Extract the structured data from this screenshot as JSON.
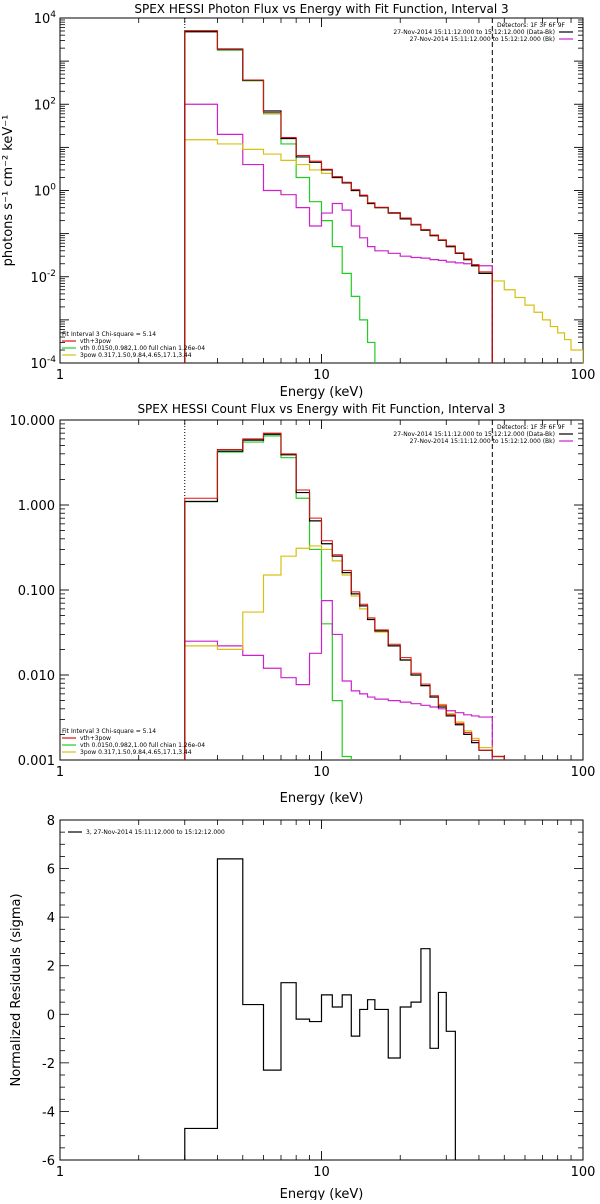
{
  "colors": {
    "black": "#000000",
    "red": "#e01010",
    "green": "#22cc22",
    "magenta": "#cc22cc",
    "yellow": "#d8c010",
    "orange": "#e07010"
  },
  "chart_data": [
    {
      "type": "line",
      "title": "SPEX HESSI Photon Flux vs Energy with Fit Function, Interval 3",
      "xlabel": "Energy (keV)",
      "ylabel": "photons s⁻¹ cm⁻² keV⁻¹",
      "xscale": "log",
      "yscale": "log",
      "xlim": [
        1,
        100
      ],
      "ylim": [
        0.0001,
        10000
      ],
      "xticks": [
        "1",
        "10",
        "100"
      ],
      "yticks": [
        {
          "base": "10",
          "exp": "-4"
        },
        {
          "base": "10",
          "exp": "-2"
        },
        {
          "base": "10",
          "exp": "0"
        },
        {
          "base": "10",
          "exp": "2"
        },
        {
          "base": "10",
          "exp": "4"
        }
      ],
      "vlines": [
        {
          "x": 3.0,
          "style": "dotted",
          "color": "#000000"
        },
        {
          "x": 45.0,
          "style": "dashed",
          "color": "#000000"
        }
      ],
      "legend_top_right": [
        {
          "text": "Detectors: 1F 3F 6F 9F",
          "color": ""
        },
        {
          "text": "27-Nov-2014 15:11:12.000 to 15:12:12.000 (Data-Bk)",
          "color": "#000000"
        },
        {
          "text": "27-Nov-2014 15:11:12.000 to 15:12:12.000 (Bk)",
          "color": "#cc22cc"
        }
      ],
      "legend_bottom_left": [
        {
          "text": "Fit Interval 3   Chi-square = 5.14",
          "color": ""
        },
        {
          "text": "vth+3pow",
          "color": "#e01010"
        },
        {
          "text": "vth 0.0150,0.982,1.00  full chian 1.26e-04",
          "color": "#22cc22"
        },
        {
          "text": "3pow 0.317,1.50,9.84,4.65,17.1,3.44",
          "color": "#d8c010"
        }
      ],
      "edges": [
        3.0,
        4.0,
        5.0,
        6.0,
        7.0,
        8.0,
        9.0,
        10.0,
        11.0,
        12.0,
        13.0,
        14.0,
        15.0,
        16.0,
        18.0,
        20.0,
        22.0,
        24.0,
        26.0,
        28.0,
        30.0,
        32.5,
        35.0,
        37.5,
        40.0,
        45.0,
        50.0,
        55.0,
        60.0,
        65.0,
        70.0,
        75.0,
        80.0,
        85.0,
        90.0,
        100.0
      ],
      "series": [
        {
          "color": "#22cc22",
          "width": 1.2,
          "values": [
            5000,
            1800,
            350,
            60,
            12,
            2.0,
            0.55,
            0.2,
            0.05,
            0.012,
            0.0035,
            0.001,
            0.0003,
            8e-05
          ]
        },
        {
          "color": "#cc22cc",
          "width": 1.2,
          "values": [
            100,
            20,
            4.0,
            1.0,
            0.8,
            0.4,
            0.15,
            0.3,
            0.5,
            0.35,
            0.15,
            0.08,
            0.05,
            0.04,
            0.035,
            0.03,
            0.028,
            0.027,
            0.025,
            0.024,
            0.022,
            0.021,
            0.02,
            0.019,
            0.018
          ]
        },
        {
          "color": "#d8c010",
          "width": 1.2,
          "values": [
            15,
            12,
            9.0,
            7.0,
            5.0,
            4.0,
            3.0,
            2.5,
            2.0,
            1.5,
            1.0,
            0.75,
            0.5,
            0.4,
            0.3,
            0.22,
            0.16,
            0.12,
            0.09,
            0.07,
            0.05,
            0.035,
            0.025,
            0.018,
            0.012,
            0.008,
            0.005,
            0.0033,
            0.0022,
            0.0015,
            0.001,
            0.0007,
            0.0005,
            0.00035,
            0.0002
          ]
        },
        {
          "color": "#000000",
          "width": 1.2,
          "values": [
            4800,
            1900,
            360,
            70,
            16,
            6.0,
            4.5,
            3.0,
            2.0,
            1.5,
            1.0,
            0.75,
            0.5,
            0.4,
            0.3,
            0.22,
            0.16,
            0.12,
            0.09,
            0.07,
            0.05,
            0.035,
            0.025,
            0.018,
            0.012
          ]
        },
        {
          "color": "#e01010",
          "width": 1.0,
          "values": [
            5100,
            1850,
            365,
            65,
            17,
            6.5,
            4.8,
            3.1,
            2.1,
            1.55,
            1.05,
            0.78,
            0.52,
            0.41,
            0.31,
            0.23,
            0.165,
            0.125,
            0.093,
            0.072,
            0.052,
            0.036,
            0.026,
            0.019,
            0.013
          ]
        }
      ]
    },
    {
      "type": "line",
      "title": "SPEX HESSI Count Flux vs Energy with Fit Function, Interval 3",
      "xlabel": "Energy (keV)",
      "ylabel": "",
      "xscale": "log",
      "yscale": "log",
      "xlim": [
        1,
        100
      ],
      "ylim": [
        0.001,
        10
      ],
      "xticks": [
        "1",
        "10",
        "100"
      ],
      "yticks": [
        "0.001",
        "0.010",
        "0.100",
        "1.000",
        "10.000"
      ],
      "vlines": [
        {
          "x": 3.0,
          "style": "dotted",
          "color": "#000000"
        },
        {
          "x": 45.0,
          "style": "dashed",
          "color": "#000000"
        }
      ],
      "legend_top_right": [
        {
          "text": "Detectors: 1F 3F 6F 9F",
          "color": ""
        },
        {
          "text": "27-Nov-2014 15:11:12.000 to 15:12:12.000 (Data-Bk)",
          "color": "#000000"
        },
        {
          "text": "27-Nov-2014 15:11:12.000 to 15:12:12.000 (Bk)",
          "color": "#cc22cc"
        }
      ],
      "legend_bottom_left": [
        {
          "text": "Fit Interval 3   Chi-square = 5.14",
          "color": ""
        },
        {
          "text": "vth+3pow",
          "color": "#e01010"
        },
        {
          "text": "vth 0.0150,0.982,1.00  full chian 1.26e-04",
          "color": "#22cc22"
        },
        {
          "text": "3pow 0.317,1.50,9.84,4.65,17.1,3.44",
          "color": "#d8c010"
        }
      ],
      "edges": [
        3.0,
        4.0,
        5.0,
        6.0,
        7.0,
        8.0,
        9.0,
        10.0,
        11.0,
        12.0,
        13.0,
        14.0,
        15.0,
        16.0,
        18.0,
        20.0,
        22.0,
        24.0,
        26.0,
        28.0,
        30.0,
        32.5,
        35.0,
        37.5,
        40.0,
        45.0,
        50.0,
        55.0
      ],
      "series": [
        {
          "color": "#22cc22",
          "width": 1.2,
          "values": [
            1.1,
            4.2,
            5.5,
            6.5,
            3.6,
            1.2,
            0.3,
            0.04,
            0.005,
            0.0011,
            0.0004
          ]
        },
        {
          "color": "#cc22cc",
          "width": 1.2,
          "values": [
            0.025,
            0.022,
            0.017,
            0.012,
            0.0093,
            0.0077,
            0.018,
            0.075,
            0.03,
            0.0085,
            0.0065,
            0.006,
            0.0055,
            0.0052,
            0.005,
            0.0048,
            0.0046,
            0.0044,
            0.0042,
            0.004,
            0.0038,
            0.0036,
            0.0034,
            0.0033,
            0.0032
          ]
        },
        {
          "color": "#d8c010",
          "width": 1.2,
          "values": [
            0.022,
            0.02,
            0.055,
            0.15,
            0.25,
            0.31,
            0.33,
            0.3,
            0.22,
            0.15,
            0.085,
            0.06,
            0.045,
            0.032,
            0.022,
            0.015,
            0.01,
            0.0075,
            0.0055,
            0.0045,
            0.0035,
            0.0028,
            0.0022,
            0.0018,
            0.0014,
            0.0011,
            0.0009
          ]
        },
        {
          "color": "#000000",
          "width": 1.2,
          "values": [
            1.1,
            4.3,
            5.8,
            6.8,
            3.9,
            1.4,
            0.65,
            0.35,
            0.25,
            0.16,
            0.09,
            0.065,
            0.045,
            0.033,
            0.022,
            0.015,
            0.01,
            0.0075,
            0.0055,
            0.0042,
            0.0033,
            0.0026,
            0.002,
            0.0016,
            0.0013,
            0.0011
          ]
        },
        {
          "color": "#e01010",
          "width": 1.0,
          "values": [
            1.2,
            4.5,
            6.0,
            7.0,
            4.0,
            1.5,
            0.7,
            0.38,
            0.26,
            0.17,
            0.095,
            0.068,
            0.047,
            0.034,
            0.023,
            0.016,
            0.0105,
            0.0078,
            0.0057,
            0.0044,
            0.0034,
            0.0027,
            0.0021,
            0.0017,
            0.0013,
            0.0011
          ]
        }
      ]
    },
    {
      "type": "line",
      "title": "",
      "xlabel": "Energy (keV)",
      "ylabel": "Normalized Residuals (sigma)",
      "xscale": "log",
      "yscale": "linear",
      "xlim": [
        1,
        100
      ],
      "ylim": [
        -6,
        8
      ],
      "xticks": [
        "1",
        "10",
        "100"
      ],
      "yticks": [
        "-6",
        "-4",
        "-2",
        "0",
        "2",
        "4",
        "6",
        "8"
      ],
      "vlines": [],
      "legend_top_left": [
        {
          "text": "3, 27-Nov-2014 15:11:12.000 to 15:12:12.000",
          "color": "#000000"
        }
      ],
      "edges": [
        3.0,
        4.0,
        5.0,
        6.0,
        7.0,
        8.0,
        9.0,
        10.0,
        11.0,
        12.0,
        13.0,
        14.0,
        15.0,
        16.0,
        18.0,
        20.0,
        22.0,
        24.0,
        26.0,
        28.0,
        30.0,
        32.5,
        35.0,
        37.5,
        40.0,
        45.0
      ],
      "series": [
        {
          "color": "#000000",
          "width": 1.2,
          "values": [
            -4.7,
            6.4,
            0.4,
            -2.3,
            1.3,
            -0.2,
            -0.3,
            0.8,
            0.3,
            0.8,
            -0.9,
            0.2,
            0.6,
            0.2,
            -1.8,
            0.3,
            0.5,
            2.7,
            -1.4,
            0.9,
            -0.7
          ]
        }
      ]
    }
  ]
}
